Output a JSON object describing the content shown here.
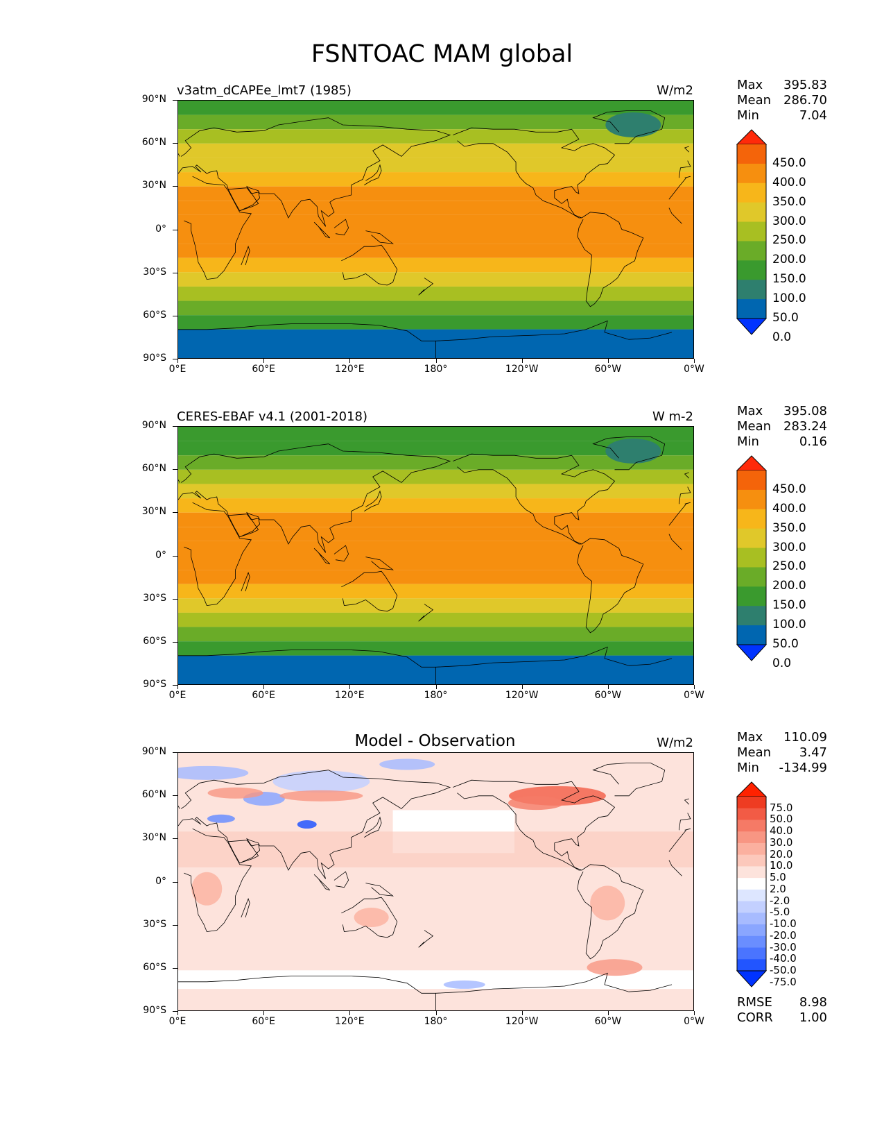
{
  "figure_title": "FSNTOAC MAM global",
  "x_ticks": [
    "0°E",
    "60°E",
    "120°E",
    "180°",
    "120°W",
    "60°W",
    "0°W"
  ],
  "y_ticks": [
    "90°N",
    "60°N",
    "30°N",
    "0°",
    "30°S",
    "60°S",
    "90°S"
  ],
  "panels": {
    "model": {
      "title": "v3atm_dCAPEe_lmt7 (1985)",
      "units": "W/m2",
      "max_label": "Max",
      "max": "395.83",
      "mean_label": "Mean",
      "mean": "286.70",
      "min_label": "Min",
      "min": "7.04",
      "levels": [
        "450.0",
        "400.0",
        "350.0",
        "300.0",
        "250.0",
        "200.0",
        "150.0",
        "100.0",
        "50.0",
        "0.0"
      ]
    },
    "obs": {
      "title": "CERES-EBAF v4.1 (2001-2018)",
      "units": "W m-2",
      "max_label": "Max",
      "max": "395.08",
      "mean_label": "Mean",
      "mean": "283.24",
      "min_label": "Min",
      "min": "0.16",
      "levels": [
        "450.0",
        "400.0",
        "350.0",
        "300.0",
        "250.0",
        "200.0",
        "150.0",
        "100.0",
        "50.0",
        "0.0"
      ]
    },
    "diff": {
      "title": "Model - Observation",
      "units": "W/m2",
      "max_label": "Max",
      "max": "110.09",
      "mean_label": "Mean",
      "mean": "3.47",
      "min_label": "Min",
      "min": "-134.99",
      "levels": [
        "75.0",
        "50.0",
        "40.0",
        "30.0",
        "20.0",
        "10.0",
        "5.0",
        "2.0",
        "-2.0",
        "-5.0",
        "-10.0",
        "-20.0",
        "-30.0",
        "-40.0",
        "-50.0",
        "-75.0"
      ],
      "rmse_label": "RMSE",
      "rmse": "8.98",
      "corr_label": "CORR",
      "corr": "1.00"
    }
  },
  "colors": {
    "abs_scale": [
      "#0033ff",
      "#0066b0",
      "#2e7f6e",
      "#3a9a2e",
      "#6aac28",
      "#a8bf22",
      "#e0c82a",
      "#f7b61a",
      "#f68f0f",
      "#f4640a",
      "#ff2a0a"
    ],
    "diff_scale": [
      "#0033ff",
      "#2255ff",
      "#4a74ff",
      "#6a8eff",
      "#8aa6ff",
      "#a7bbff",
      "#c3d0ff",
      "#dde6ff",
      "#ffffff",
      "#fde3dc",
      "#fcc8bb",
      "#fbb09f",
      "#f89683",
      "#f57a66",
      "#f25b45",
      "#ee3c22",
      "#ff2200"
    ],
    "land_outline": "#000000"
  },
  "chart_data": [
    {
      "type": "heatmap",
      "title": "v3atm_dCAPEe_lmt7 (1985)",
      "variable": "FSNTOAC",
      "season": "MAM",
      "units": "W/m2",
      "lon_range": [
        0,
        360
      ],
      "lat_range": [
        -90,
        90
      ],
      "zonal_mean_by_lat": {
        "lat": [
          85,
          75,
          65,
          55,
          45,
          35,
          25,
          15,
          5,
          -5,
          -15,
          -25,
          -35,
          -45,
          -55,
          -65,
          -75,
          -85
        ],
        "value": [
          110,
          150,
          200,
          250,
          290,
          330,
          360,
          380,
          385,
          385,
          370,
          340,
          290,
          230,
          170,
          120,
          40,
          20
        ]
      },
      "levels": [
        0,
        50,
        100,
        150,
        200,
        250,
        300,
        350,
        400,
        450
      ],
      "max": 395.83,
      "mean": 286.7,
      "min": 7.04
    },
    {
      "type": "heatmap",
      "title": "CERES-EBAF v4.1 (2001-2018)",
      "variable": "FSNTOAC",
      "season": "MAM",
      "units": "W m-2",
      "lon_range": [
        0,
        360
      ],
      "lat_range": [
        -90,
        90
      ],
      "zonal_mean_by_lat": {
        "lat": [
          85,
          75,
          65,
          55,
          45,
          35,
          25,
          15,
          5,
          -5,
          -15,
          -25,
          -35,
          -45,
          -55,
          -65,
          -75,
          -85
        ],
        "value": [
          105,
          145,
          195,
          245,
          285,
          325,
          355,
          378,
          382,
          383,
          368,
          337,
          287,
          227,
          167,
          117,
          35,
          15
        ]
      },
      "levels": [
        0,
        50,
        100,
        150,
        200,
        250,
        300,
        350,
        400,
        450
      ],
      "max": 395.08,
      "mean": 283.24,
      "min": 0.16
    },
    {
      "type": "heatmap",
      "title": "Model - Observation",
      "units": "W/m2",
      "lon_range": [
        0,
        360
      ],
      "lat_range": [
        -90,
        90
      ],
      "levels": [
        -75,
        -50,
        -40,
        -30,
        -20,
        -10,
        -5,
        -2,
        2,
        5,
        10,
        20,
        30,
        40,
        50,
        75
      ],
      "max": 110.09,
      "mean": 3.47,
      "min": -134.99,
      "rmse": 8.98,
      "corr": 1.0
    }
  ]
}
